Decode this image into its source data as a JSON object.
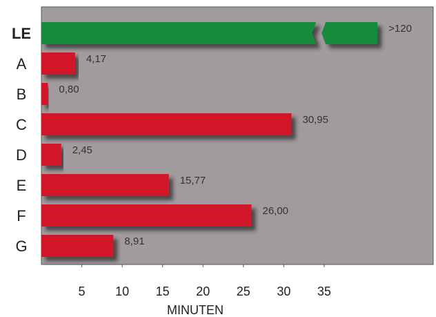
{
  "chart_data": {
    "type": "hbar",
    "xlabel": "MINUTEN",
    "categories": [
      "LE",
      "A",
      "B",
      "C",
      "D",
      "E",
      "F",
      "G"
    ],
    "values": [
      120,
      4.17,
      0.8,
      30.95,
      2.45,
      15.77,
      26.0,
      8.91
    ],
    "value_labels": [
      ">120",
      "4,17",
      "0,80",
      "30,95",
      "2,45",
      "15,77",
      "26,00",
      "8,91"
    ],
    "colors": [
      "#188a3c",
      "#d2162c",
      "#d2162c",
      "#d2162c",
      "#d2162c",
      "#d2162c",
      "#d2162c",
      "#d2162c"
    ],
    "xlim": [
      0,
      48.5
    ],
    "xticks": [
      5,
      10,
      15,
      20,
      25,
      30,
      35
    ],
    "x_break": 34
  }
}
